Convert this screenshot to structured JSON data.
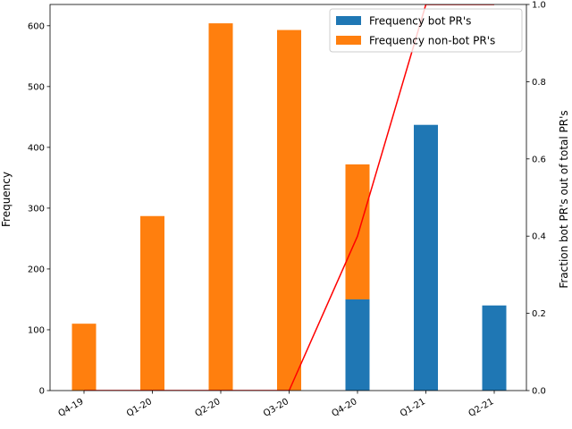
{
  "chart_data": {
    "type": "bar",
    "stacked": true,
    "categories": [
      "Q4-19",
      "Q1-20",
      "Q2-20",
      "Q3-20",
      "Q4-20",
      "Q1-21",
      "Q2-21"
    ],
    "series": [
      {
        "name": "Frequency bot PR's",
        "values": [
          0,
          0,
          0,
          0,
          150,
          437,
          140
        ],
        "color": "#1f77b4"
      },
      {
        "name": "Frequency non-bot PR's",
        "values": [
          110,
          287,
          604,
          593,
          222,
          0,
          0
        ],
        "color": "#ff7f0e"
      }
    ],
    "line_series": {
      "values": [
        0,
        0,
        0,
        0,
        0.4,
        1.0,
        1.0
      ],
      "color": "#ff0000",
      "axis": "right"
    },
    "ylabel": "Frequency",
    "ylabel_right": "Fraction bot PR's out of total PR's",
    "ylim": [
      0,
      635
    ],
    "ylim_right": [
      0,
      1.0
    ],
    "yticks": [
      0,
      100,
      200,
      300,
      400,
      500,
      600
    ],
    "yticks_right": [
      "0.0",
      "0.2",
      "0.4",
      "0.6",
      "0.8",
      "1.0"
    ],
    "legend_position": "top-right",
    "grid": false
  }
}
